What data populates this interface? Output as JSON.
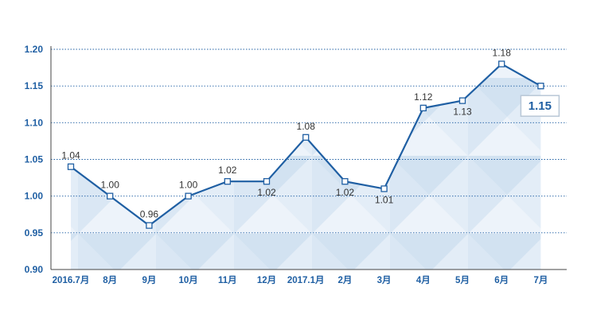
{
  "chart_data": {
    "type": "line",
    "title": "",
    "xlabel": "",
    "ylabel": "",
    "ylim": [
      0.9,
      1.2
    ],
    "yticks": [
      "1.20",
      "1.15",
      "1.10",
      "1.05",
      "1.00",
      "0.95",
      "0.90"
    ],
    "categories": [
      "2016.7月",
      "8月",
      "9月",
      "10月",
      "11月",
      "12月",
      "2017.1月",
      "2月",
      "3月",
      "4月",
      "5月",
      "6月",
      "7月"
    ],
    "series": [
      {
        "name": "",
        "values": [
          1.04,
          1.0,
          0.96,
          1.0,
          1.02,
          1.02,
          1.08,
          1.02,
          1.01,
          1.12,
          1.13,
          1.18,
          1.15
        ],
        "labels": [
          "1.04",
          "1.00",
          "0.96",
          "1.00",
          "1.02",
          "1.02",
          "1.08",
          "1.02",
          "1.01",
          "1.12",
          "1.13",
          "1.18",
          "1.15"
        ],
        "label_positions": [
          "above",
          "above",
          "above",
          "above",
          "above",
          "below",
          "above",
          "below",
          "below",
          "above",
          "below",
          "above",
          "box"
        ]
      }
    ],
    "callout": "1.15",
    "colors": {
      "line": "#1f5fa3",
      "fill": "#dbe8f4"
    }
  }
}
